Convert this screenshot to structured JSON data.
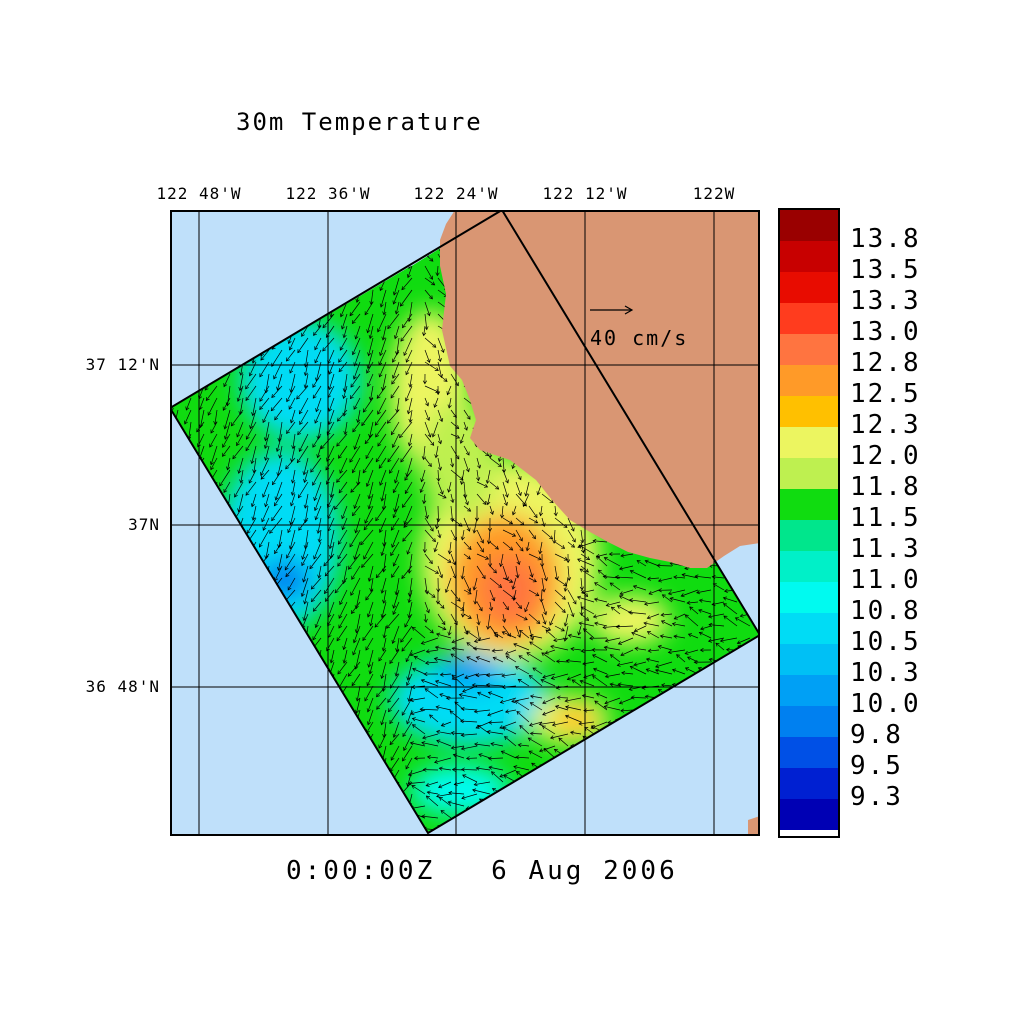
{
  "title": "30m Temperature",
  "timestamp": "0:00:00Z   6 Aug 2006",
  "lon_ticks": [
    "122 48'W",
    "122 36'W",
    "122 24'W",
    "122 12'W",
    "122W"
  ],
  "lat_ticks": [
    "37 12'N",
    "37N",
    "36 48'N"
  ],
  "reference_vector": {
    "label": "40 cm/s",
    "speed_cm_s": 40
  },
  "colors": {
    "ocean": "#bfe0fa",
    "land": "#d99673",
    "gridline": "#000000"
  },
  "colorbar": {
    "labels": [
      "13.8",
      "13.5",
      "13.3",
      "13.0",
      "12.8",
      "12.5",
      "12.3",
      "12.0",
      "11.8",
      "11.5",
      "11.3",
      "11.0",
      "10.8",
      "10.5",
      "10.3",
      "10.0",
      "9.8",
      "9.5",
      "9.3"
    ],
    "colors": [
      "#9a0000",
      "#c80000",
      "#e80c00",
      "#ff3c1e",
      "#ff7440",
      "#ff9a28",
      "#ffc000",
      "#ecf560",
      "#bef050",
      "#10dc10",
      "#00e68c",
      "#00f0c8",
      "#00faf0",
      "#00dcf5",
      "#00c0f5",
      "#00a0f5",
      "#0080f0",
      "#0050e6",
      "#0020d2",
      "#0000b4"
    ]
  }
}
